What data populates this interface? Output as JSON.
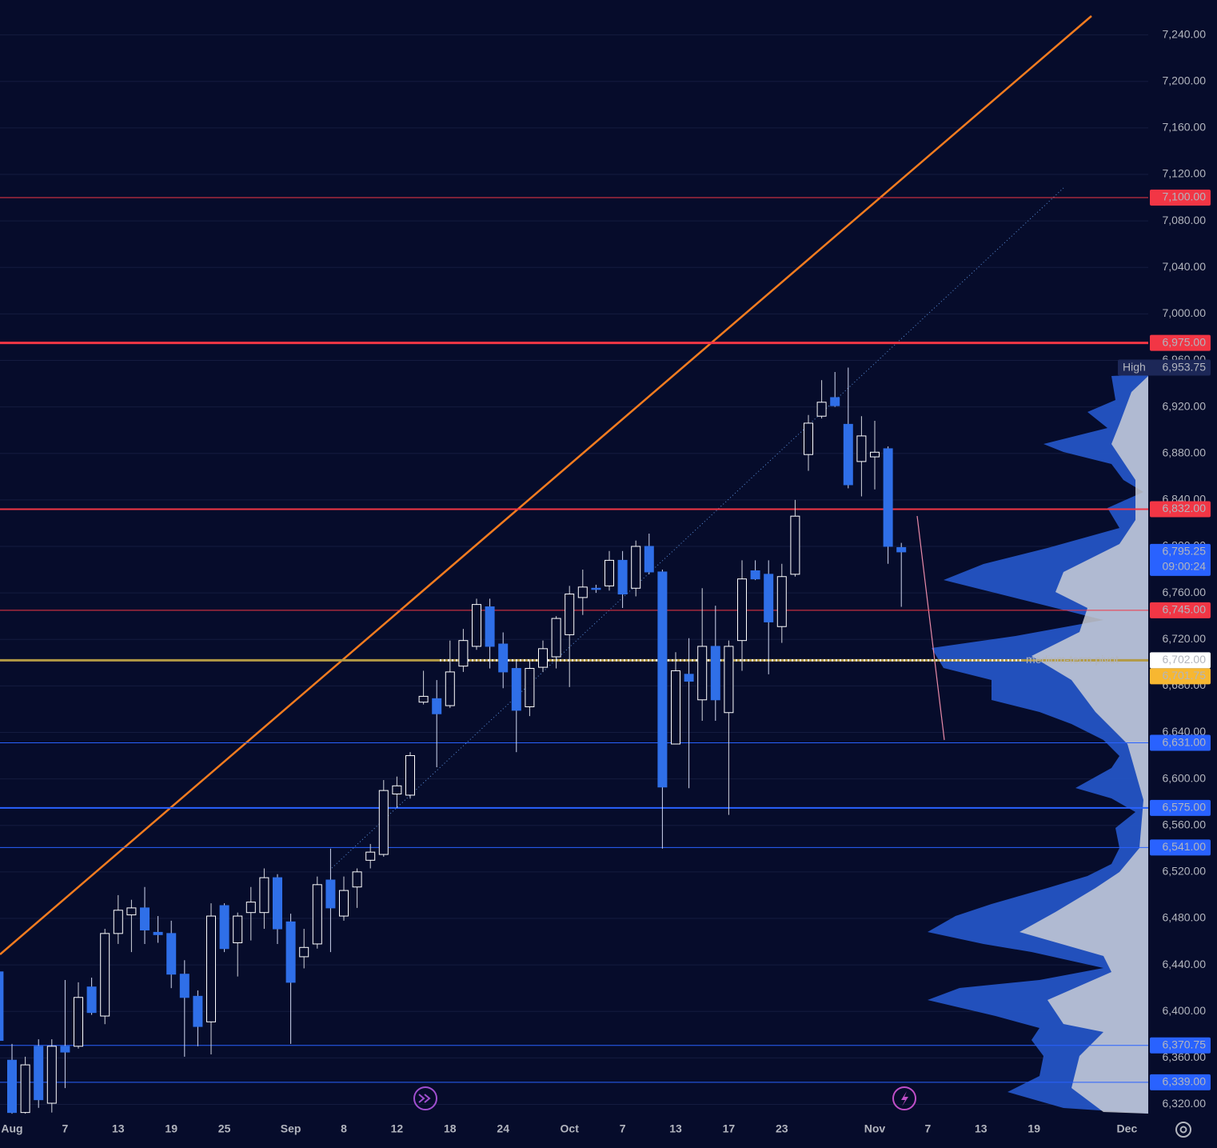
{
  "chart_data": {
    "type": "candlestick",
    "categories": [
      null,
      "Aug",
      null,
      null,
      null,
      "7",
      null,
      null,
      null,
      "13",
      null,
      null,
      null,
      "19",
      null,
      null,
      null,
      "25",
      null,
      null,
      null,
      null,
      "Sep",
      null,
      null,
      null,
      "8",
      null,
      null,
      null,
      "12",
      null,
      null,
      null,
      "18",
      null,
      null,
      null,
      "24",
      null,
      null,
      null,
      null,
      "Oct",
      null,
      null,
      null,
      "7",
      null,
      null,
      null,
      "13",
      null,
      null,
      null,
      "17",
      null,
      null,
      null,
      "23",
      null,
      null,
      null,
      null,
      null,
      null,
      "Nov",
      null,
      null,
      null,
      "7",
      null,
      null,
      null,
      "13",
      null,
      null,
      null,
      "19",
      null,
      null,
      null,
      null,
      null,
      null,
      "Dec"
    ],
    "open": [
      6434,
      6358,
      6313,
      6370,
      6321,
      6370,
      6370,
      6421,
      6396,
      6467,
      6483,
      6489,
      6468,
      6467,
      6432,
      6413,
      6391,
      6491,
      6459,
      6485,
      6485,
      6515,
      6477,
      6447,
      6458,
      6513,
      6482,
      6507,
      6530,
      6535,
      6587,
      6586,
      6666,
      6669,
      6663,
      6697,
      6714,
      6748,
      6716,
      6695,
      6662,
      6696,
      6705,
      6724,
      6756,
      6764,
      6766,
      6788,
      6764,
      6800,
      6778,
      6630,
      6690,
      6668,
      6714,
      6657,
      6719,
      6779,
      6776,
      6731,
      6776,
      6879,
      6912,
      6928,
      6905,
      6873,
      6877,
      6884,
      6799,
      null,
      null,
      null,
      null,
      null,
      null,
      null,
      null,
      null,
      null,
      null,
      null,
      null,
      null,
      null,
      null,
      null
    ],
    "high": [
      6437,
      6372,
      6361,
      6376,
      6376,
      6427,
      6425,
      6429,
      6471,
      6500,
      6496,
      6507,
      6482,
      6478,
      6444,
      6418,
      6493,
      6493,
      6485,
      6507,
      6523,
      6518,
      6484,
      6471,
      6516,
      6540,
      6516,
      6523,
      6544,
      6599,
      6602,
      6623,
      6693,
      6685,
      6719,
      6729,
      6755,
      6755,
      6726,
      6702,
      6702,
      6719,
      6740,
      6766,
      6780,
      6767,
      6796,
      6796,
      6805,
      6811,
      6780,
      6709,
      6721,
      6764,
      6749,
      6719,
      6788,
      6788,
      6788,
      6785,
      6840,
      6913,
      6943,
      6950,
      6953.75,
      6912,
      6908,
      6886,
      6803,
      null,
      null,
      null,
      null,
      null,
      null,
      null,
      null,
      null,
      null,
      null,
      null,
      null,
      null,
      null,
      null,
      null
    ],
    "low": [
      6372,
      6312,
      6312,
      6317,
      6313,
      6334,
      6368,
      6397,
      6389,
      6458,
      6451,
      6458,
      6459,
      6420,
      6361,
      6370,
      6363,
      6451,
      6430,
      6461,
      6471,
      6458,
      6372,
      6437,
      6454,
      6451,
      6478,
      6489,
      6523,
      6533,
      6575,
      6583,
      6664,
      6610,
      6661,
      6692,
      6711,
      6695,
      6678,
      6623,
      6654,
      6692,
      6695,
      6679,
      6741,
      6760,
      6762,
      6747,
      6757,
      6776,
      6540,
      6630,
      6592,
      6650,
      6650,
      6569,
      6693,
      6771,
      6690,
      6717,
      6774,
      6865,
      6910,
      6920,
      6850,
      6843,
      6849,
      6785,
      6748,
      null,
      null,
      null,
      null,
      null,
      null,
      null,
      null,
      null,
      null,
      null,
      null,
      null,
      null,
      null,
      null,
      null
    ],
    "close": [
      6375,
      6313,
      6354,
      6324,
      6370,
      6365,
      6412,
      6399,
      6467,
      6487,
      6489,
      6470,
      6466,
      6432,
      6412,
      6387,
      6482,
      6454,
      6482,
      6494,
      6515,
      6471,
      6425,
      6455,
      6509,
      6489,
      6504,
      6520,
      6537,
      6590,
      6594,
      6620,
      6671,
      6656,
      6692,
      6719,
      6750,
      6714,
      6692,
      6659,
      6695,
      6712,
      6738,
      6759,
      6765,
      6763,
      6788,
      6759,
      6800,
      6778,
      6593,
      6693,
      6684,
      6714,
      6668,
      6714,
      6772,
      6772,
      6735,
      6774,
      6826,
      6906,
      6924,
      6921,
      6853,
      6895,
      6881,
      6800,
      6795.25,
      null,
      null,
      null,
      null,
      null,
      null,
      null,
      null,
      null,
      null,
      null,
      null,
      null,
      null,
      null,
      null,
      null
    ],
    "up_color": "#ffffff",
    "down_color": "#2f6fe8",
    "ylim": [
      6310,
      7270
    ],
    "yticks": [
      {
        "value": 7240,
        "label": "7,240.00"
      },
      {
        "value": 7200,
        "label": "7,200.00"
      },
      {
        "value": 7160,
        "label": "7,160.00"
      },
      {
        "value": 7120,
        "label": "7,120.00"
      },
      {
        "value": 7080,
        "label": "7,080.00"
      },
      {
        "value": 7040,
        "label": "7,040.00"
      },
      {
        "value": 7000,
        "label": "7,000.00"
      },
      {
        "value": 6960,
        "label": "6,960.00"
      },
      {
        "value": 6920,
        "label": "6,920.00"
      },
      {
        "value": 6880,
        "label": "6,880.00"
      },
      {
        "value": 6840,
        "label": "6,840.00"
      },
      {
        "value": 6800,
        "label": "6,800.00"
      },
      {
        "value": 6760,
        "label": "6,760.00"
      },
      {
        "value": 6720,
        "label": "6,720.00"
      },
      {
        "value": 6680,
        "label": "6,680.00"
      },
      {
        "value": 6640,
        "label": "6,640.00"
      },
      {
        "value": 6600,
        "label": "6,600.00"
      },
      {
        "value": 6560,
        "label": "6,560.00"
      },
      {
        "value": 6520,
        "label": "6,520.00"
      },
      {
        "value": 6480,
        "label": "6,480.00"
      },
      {
        "value": 6440,
        "label": "6,440.00"
      },
      {
        "value": 6400,
        "label": "6,400.00"
      },
      {
        "value": 6360,
        "label": "6,360.00"
      },
      {
        "value": 6320,
        "label": "6,320.00"
      }
    ],
    "grid": true,
    "levels": [
      {
        "value": 7100,
        "label": "7,100.00",
        "color": "#f23645",
        "style": "thin"
      },
      {
        "value": 6975,
        "label": "6,975.00",
        "color": "#f23645",
        "style": "thick"
      },
      {
        "value": 6832,
        "label": "6,832.00",
        "color": "#f23645",
        "style": "medium"
      },
      {
        "value": 6745,
        "label": "6,745.00",
        "color": "#f23645",
        "style": "thin"
      },
      {
        "value": 6631,
        "label": "6,631.00",
        "color": "#2962ff",
        "style": "thin"
      },
      {
        "value": 6575,
        "label": "6,575.00",
        "color": "#2962ff",
        "style": "medium"
      },
      {
        "value": 6541,
        "label": "6,541.00",
        "color": "#2962ff",
        "style": "thin"
      },
      {
        "value": 6370.75,
        "label": "6,370.75",
        "color": "#2962ff",
        "style": "thin"
      },
      {
        "value": 6339,
        "label": "6,339.00",
        "color": "#2962ff",
        "style": "thin"
      }
    ],
    "pivot": {
      "value": 6702,
      "label": "6,702.00",
      "name": "medium-term pivot",
      "color": "#b39a45"
    },
    "price_labels": [
      {
        "value": 6701.75,
        "label": "6,701.75",
        "color": "#f7b731"
      }
    ],
    "high_label": "High",
    "high_value_label": "6,953.75",
    "last_price_label": "6,795.25",
    "countdown": "09:00:24"
  }
}
